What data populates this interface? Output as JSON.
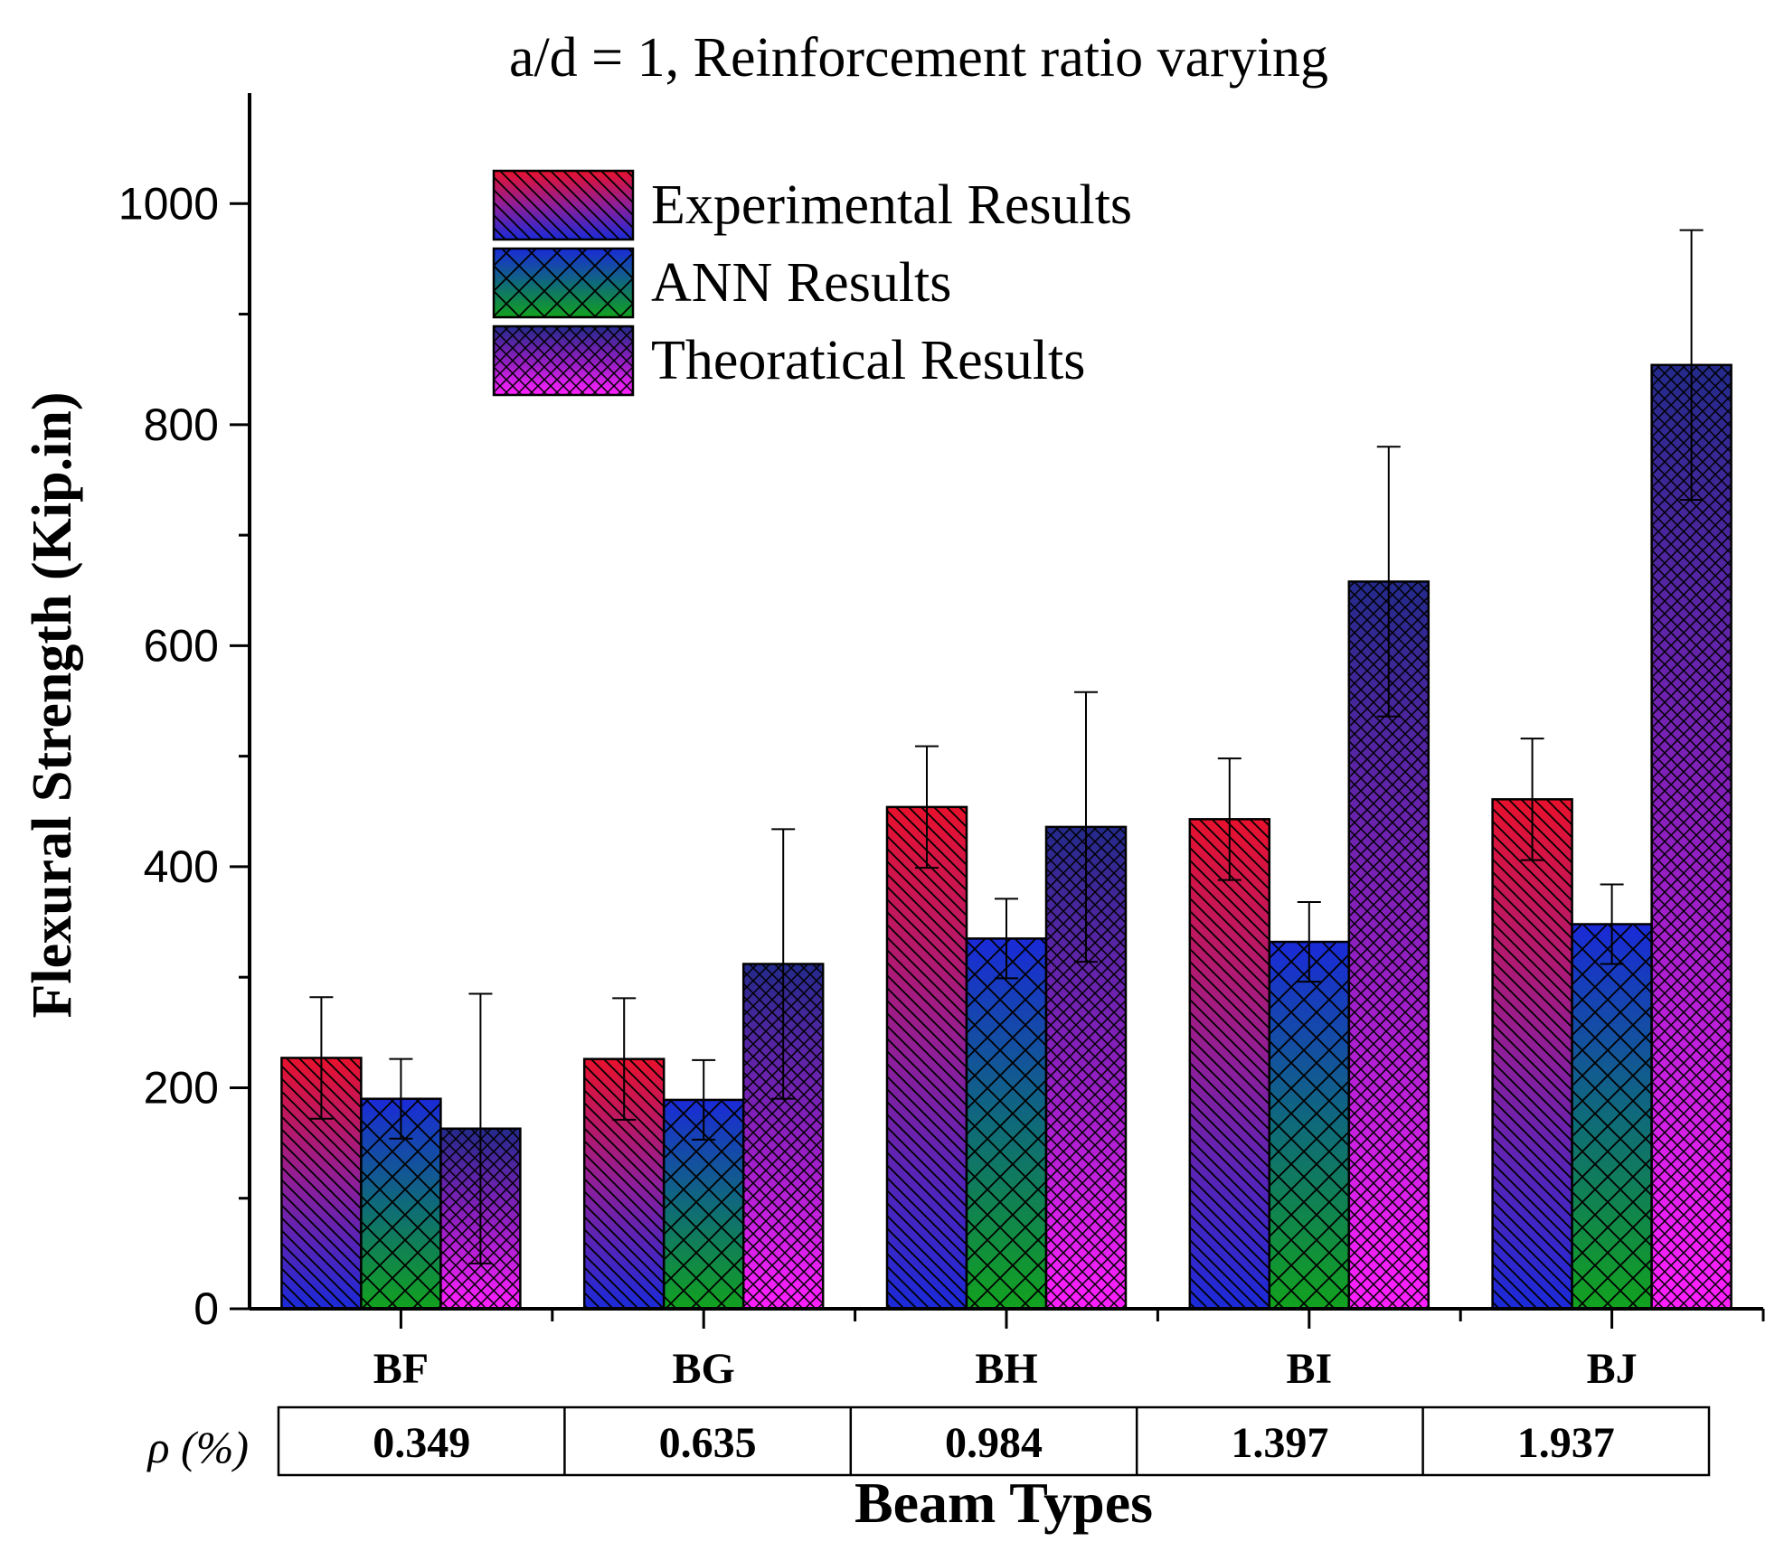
{
  "chart_data": {
    "type": "bar",
    "title": "a/d = 1, Reinforcement ratio varying",
    "xlabel": "Beam Types",
    "ylabel": "Flexural Strength (Kip.in)",
    "ylim": [
      0,
      1100
    ],
    "yticks": [
      0,
      200,
      400,
      600,
      800,
      1000
    ],
    "categories": [
      "BF",
      "BG",
      "BH",
      "BI",
      "BJ"
    ],
    "series": [
      {
        "name": "Experimental Results",
        "values": [
          227,
          226,
          454,
          443,
          461
        ],
        "error": [
          55,
          55,
          55,
          55,
          55
        ]
      },
      {
        "name": "ANN Results",
        "values": [
          190,
          189,
          335,
          332,
          348
        ],
        "error": [
          36,
          36,
          36,
          36,
          36
        ]
      },
      {
        "name": "Theoratical Results",
        "values": [
          163,
          312,
          436,
          658,
          854
        ],
        "error": [
          122,
          122,
          122,
          122,
          122
        ]
      }
    ],
    "rho_label": "ρ (%)",
    "rho_values": [
      "0.349",
      "0.635",
      "0.984",
      "1.397",
      "1.937"
    ],
    "legend_position": "top-left",
    "grid": false
  }
}
